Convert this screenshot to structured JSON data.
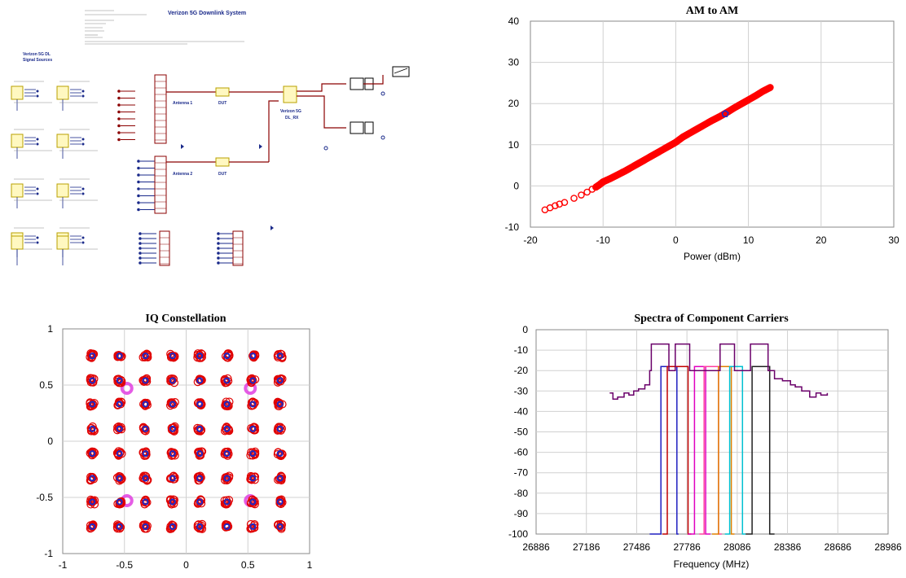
{
  "schematic": {
    "title": "Verizon 5G Downlink System",
    "sources_label_1": "Verizon 5G DL",
    "sources_label_2": "Signal Sources",
    "antenna1": "Antenna 1",
    "antenna2": "Antenna 2",
    "dut1": "DUT",
    "dut2": "DUT",
    "rx_label_1": "Verizon 5G",
    "rx_label_2": "DL_RX"
  },
  "colors": {
    "wire": "#8b0000",
    "port": "#1a2a8a",
    "block": "#b8a000",
    "grid": "#d0d0d0"
  },
  "chart_data": [
    {
      "type": "scatter",
      "title": "AM to AM",
      "xlabel": "Power (dBm)",
      "ylabel": "",
      "xlim": [
        -20,
        30
      ],
      "ylim": [
        -10,
        40
      ],
      "xticks": [
        "-20",
        "-10",
        "0",
        "10",
        "20",
        "30"
      ],
      "yticks": [
        "40",
        "30",
        "20",
        "10",
        "0",
        "-10"
      ],
      "grid": true,
      "series": [
        {
          "color": "#ff0000",
          "marker": "circle",
          "x": [
            -18,
            -17.3,
            -16.6,
            -16,
            -15.3,
            -14,
            -13,
            -12.2,
            -11.5,
            -11,
            -10.5,
            -10,
            -9,
            -8,
            -7,
            -6,
            -5,
            -4,
            -3,
            -2,
            -1,
            0,
            1,
            2,
            3,
            4,
            5,
            6,
            7,
            8,
            9,
            10,
            11,
            12,
            13
          ],
          "y": [
            -5.8,
            -5.3,
            -4.8,
            -4.4,
            -4.0,
            -3.0,
            -2.2,
            -1.5,
            -0.8,
            -0.3,
            0.3,
            1.0,
            1.8,
            2.7,
            3.6,
            4.6,
            5.6,
            6.6,
            7.6,
            8.6,
            9.6,
            10.6,
            11.9,
            12.9,
            13.9,
            14.9,
            15.9,
            16.8,
            17.8,
            18.9,
            19.9,
            20.9,
            21.9,
            23.0,
            23.9
          ]
        },
        {
          "color": "#1a2ac8",
          "marker": "pentagon",
          "x": [
            6.8
          ],
          "y": [
            17.5
          ]
        }
      ]
    },
    {
      "type": "scatter",
      "title": "IQ Constellation",
      "xlabel": "",
      "ylabel": "",
      "xlim": [
        -1,
        1
      ],
      "ylim": [
        -1,
        1
      ],
      "xticks": [
        "-1",
        "-0.5",
        "0",
        "0.5",
        "1"
      ],
      "yticks": [
        "1",
        "0.5",
        "0",
        "-0.5",
        "-1"
      ],
      "grid": true,
      "levels": [
        -0.76,
        -0.54,
        -0.33,
        -0.11,
        0.11,
        0.33,
        0.54,
        0.76
      ],
      "highlight_points": [
        [
          -0.5,
          0.5
        ],
        [
          0.5,
          0.5
        ],
        [
          -0.5,
          -0.5
        ],
        [
          0.5,
          -0.5
        ]
      ],
      "colors": {
        "cluster": "#e00000",
        "ideal": "#1a2ac8",
        "highlight": "#e040e0"
      }
    },
    {
      "type": "line",
      "title": "Spectra of Component Carriers",
      "xlabel": "Frequency (MHz)",
      "ylabel": "",
      "xlim": [
        26886,
        29086
      ],
      "ylim": [
        -100,
        0
      ],
      "xticks": [
        "26886",
        "27186",
        "27486",
        "27786",
        "28086",
        "28386",
        "28686",
        "28986"
      ],
      "yticks": [
        "0",
        "-10",
        "-20",
        "-30",
        "-40",
        "-50",
        "-60",
        "-70",
        "-80",
        "-90",
        "-100"
      ],
      "grid": true,
      "series": [
        {
          "color": "#2020c0",
          "x": [
            27596,
            27656,
            27666,
            27696,
            27706,
            27766,
            27776
          ],
          "y": [
            -100,
            -100,
            -18,
            -18,
            -18,
            -100,
            -100
          ]
        },
        {
          "color": "#c00000",
          "x": [
            27676,
            27696,
            27706,
            27826,
            27836,
            27856
          ],
          "y": [
            -100,
            -100,
            -18,
            -18,
            -100,
            -100
          ]
        },
        {
          "color": "#e000c0",
          "x": [
            27836,
            27866,
            27876,
            27936,
            27946,
            27976
          ],
          "y": [
            -100,
            -100,
            -18,
            -18,
            -100,
            -100
          ]
        },
        {
          "color": "#ff40a0",
          "x": [
            27906,
            27926,
            27936,
            28016,
            28026,
            28046
          ],
          "y": [
            -100,
            -100,
            -18,
            -18,
            -100,
            -100
          ]
        },
        {
          "color": "#e08000",
          "x": [
            27986,
            28016,
            28026,
            28096,
            28106,
            28126
          ],
          "y": [
            -100,
            -100,
            -18,
            -18,
            -100,
            -100
          ]
        },
        {
          "color": "#00c0d0",
          "x": [
            28066,
            28086,
            28096,
            28166,
            28176,
            28196
          ],
          "y": [
            -100,
            -100,
            -18,
            -18,
            -100,
            -100
          ]
        },
        {
          "color": "#202020",
          "x": [
            28196,
            28226,
            28236,
            28336,
            28346,
            28376
          ],
          "y": [
            -100,
            -100,
            -18,
            -18,
            -100,
            -100
          ]
        },
        {
          "color": "#6a006a",
          "x": [
            27346,
            27366,
            27396,
            27436,
            27466,
            27496,
            27526,
            27566,
            27596,
            27606,
            27616,
            27706,
            27716,
            27746,
            27756,
            27836,
            27846,
            28026,
            28036,
            28116,
            28126,
            28216,
            28226,
            28326,
            28336,
            28366,
            28376,
            28426,
            28476,
            28506,
            28546,
            28596,
            28636,
            28666,
            28706
          ],
          "y": [
            -31,
            -34,
            -33,
            -31,
            -32,
            -30,
            -29,
            -27,
            -20,
            -7,
            -7,
            -7,
            -20,
            -20,
            -7,
            -7,
            -20,
            -20,
            -7,
            -7,
            -20,
            -20,
            -7,
            -7,
            -20,
            -20,
            -24,
            -25,
            -27,
            -28,
            -30,
            -33,
            -31,
            -32,
            -31
          ]
        }
      ]
    }
  ]
}
